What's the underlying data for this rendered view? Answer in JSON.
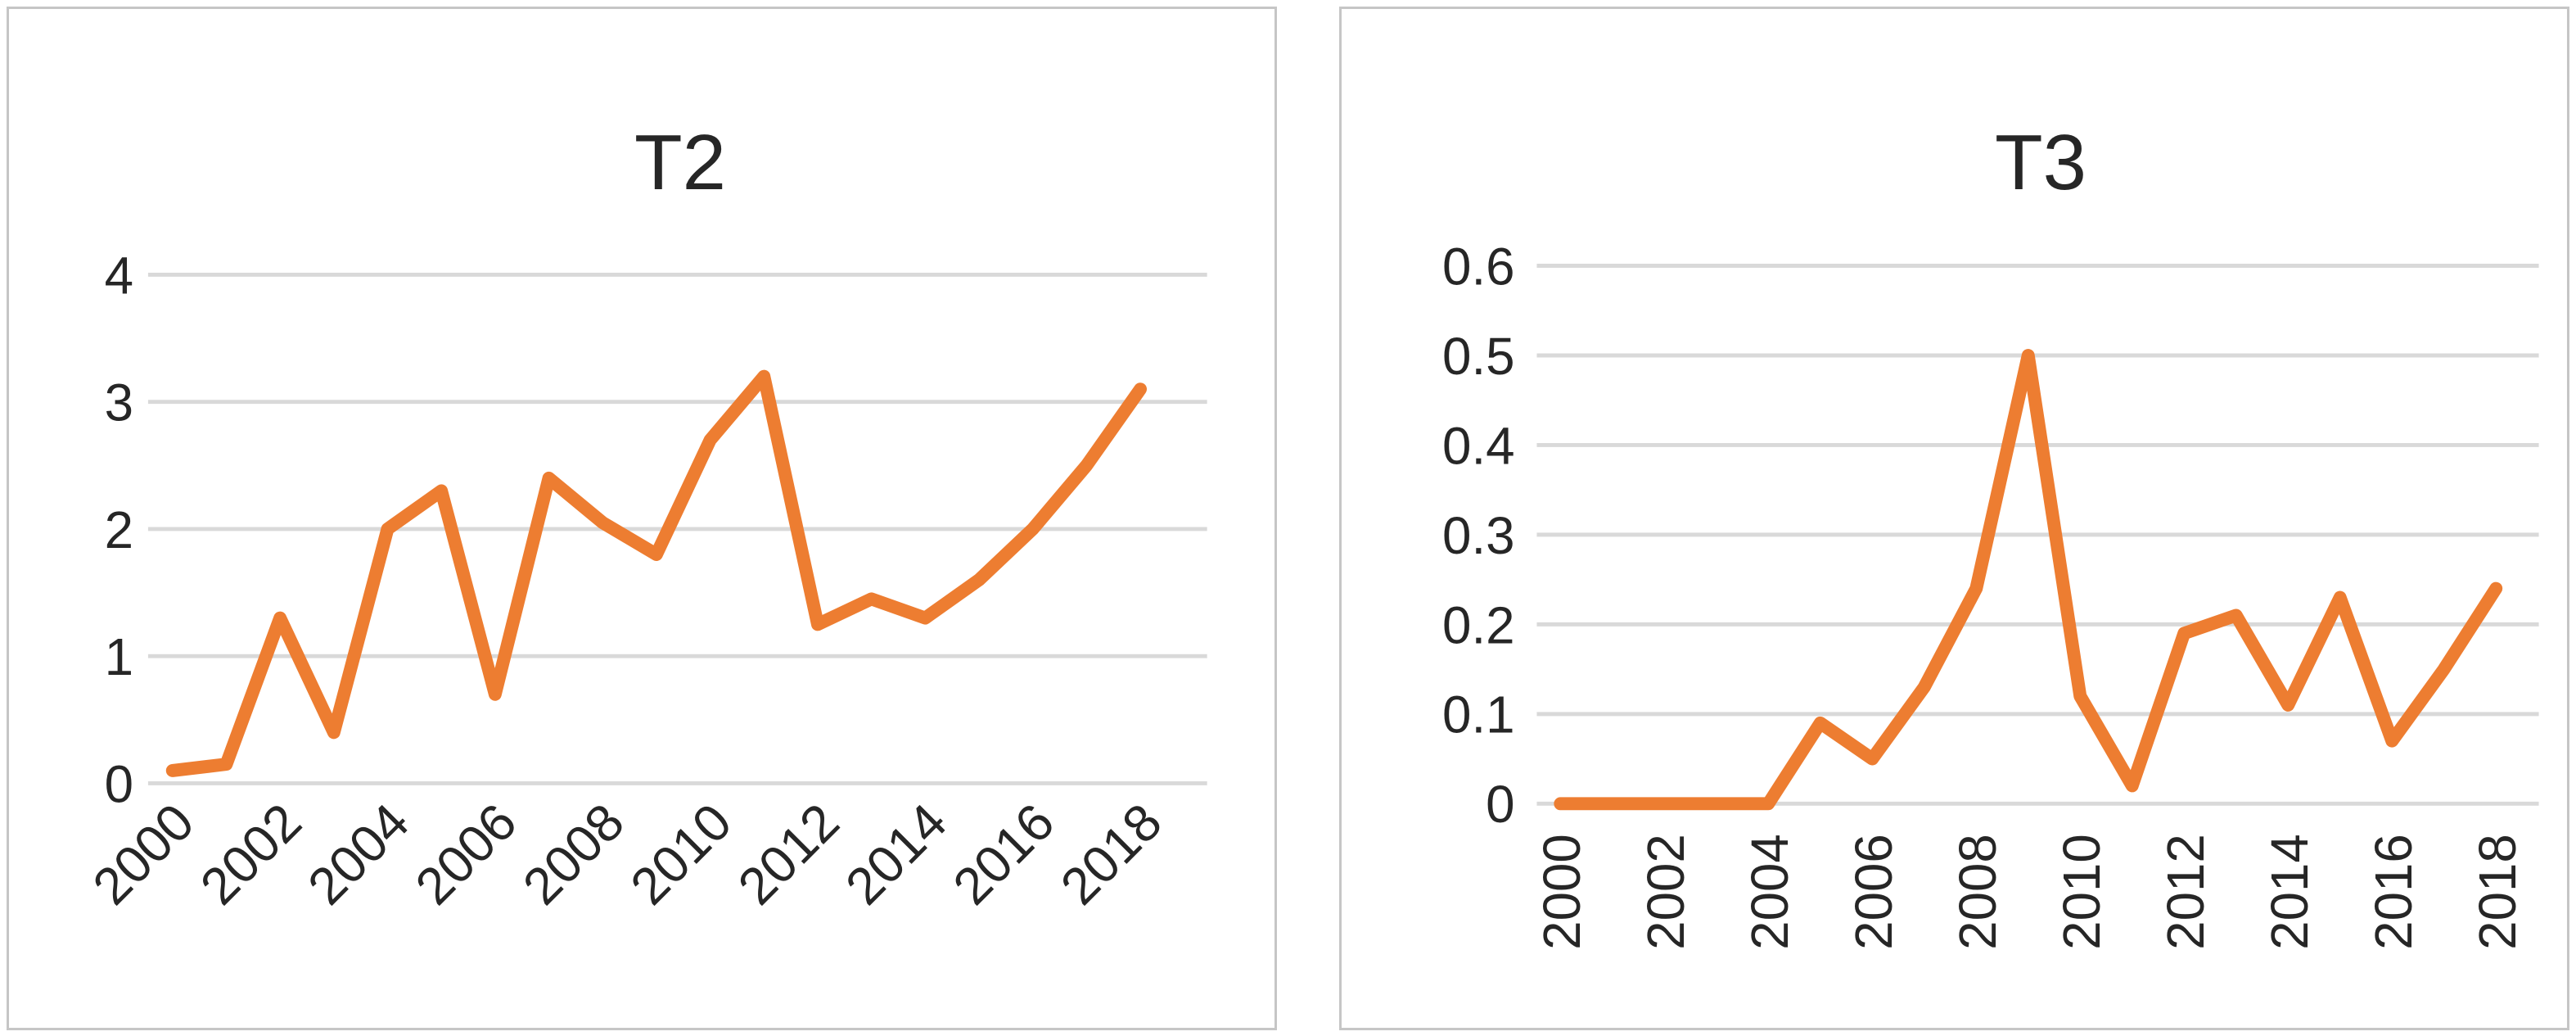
{
  "page": {
    "background_color": "#ffffff",
    "panel_border_color": "#c6c6c6"
  },
  "chart_data": [
    {
      "type": "line",
      "title": "T2",
      "series_color": "#ED7D31",
      "gridline_color": "#D9D9D9",
      "grid": "horizontal",
      "legend_position": "none",
      "x": [
        2000,
        2001,
        2002,
        2003,
        2004,
        2005,
        2006,
        2007,
        2008,
        2009,
        2010,
        2011,
        2012,
        2013,
        2014,
        2015,
        2016,
        2017,
        2018
      ],
      "values": [
        0.1,
        0.15,
        1.3,
        0.4,
        2.0,
        2.3,
        0.7,
        2.4,
        2.05,
        1.8,
        2.7,
        3.2,
        1.25,
        1.45,
        1.3,
        1.6,
        2.0,
        2.5,
        3.1
      ],
      "xlabel": "",
      "ylabel": "",
      "ylim": [
        0,
        4
      ],
      "y_tick_values": [
        0,
        1,
        2,
        3,
        4
      ],
      "y_tick_labels": [
        "0",
        "1",
        "2",
        "3",
        "4"
      ],
      "x_tick_years": [
        2000,
        2002,
        2004,
        2006,
        2008,
        2010,
        2012,
        2014,
        2016,
        2018
      ],
      "x_tick_labels": [
        "2000",
        "2002",
        "2004",
        "2006",
        "2008",
        "2010",
        "2012",
        "2014",
        "2016",
        "2018"
      ],
      "x_label_rotation_deg": -45
    },
    {
      "type": "line",
      "title": "T3",
      "series_color": "#ED7D31",
      "gridline_color": "#D9D9D9",
      "grid": "horizontal",
      "legend_position": "none",
      "x": [
        2000,
        2001,
        2002,
        2003,
        2004,
        2005,
        2006,
        2007,
        2008,
        2009,
        2010,
        2011,
        2012,
        2013,
        2014,
        2015,
        2016,
        2017,
        2018
      ],
      "values": [
        0,
        0,
        0,
        0,
        0,
        0.09,
        0.05,
        0.13,
        0.24,
        0.5,
        0.12,
        0.02,
        0.19,
        0.21,
        0.11,
        0.23,
        0.07,
        0.15,
        0.24
      ],
      "xlabel": "",
      "ylabel": "",
      "ylim": [
        0,
        0.6
      ],
      "y_tick_values": [
        0,
        0.1,
        0.2,
        0.3,
        0.4,
        0.5,
        0.6
      ],
      "y_tick_labels": [
        "0",
        "0.1",
        "0.2",
        "0.3",
        "0.4",
        "0.5",
        "0.6"
      ],
      "x_tick_years": [
        2000,
        2002,
        2004,
        2006,
        2008,
        2010,
        2012,
        2014,
        2016,
        2018
      ],
      "x_tick_labels": [
        "2000",
        "2002",
        "2004",
        "2006",
        "2008",
        "2010",
        "2012",
        "2014",
        "2016",
        "2018"
      ],
      "x_label_rotation_deg": -90
    }
  ]
}
